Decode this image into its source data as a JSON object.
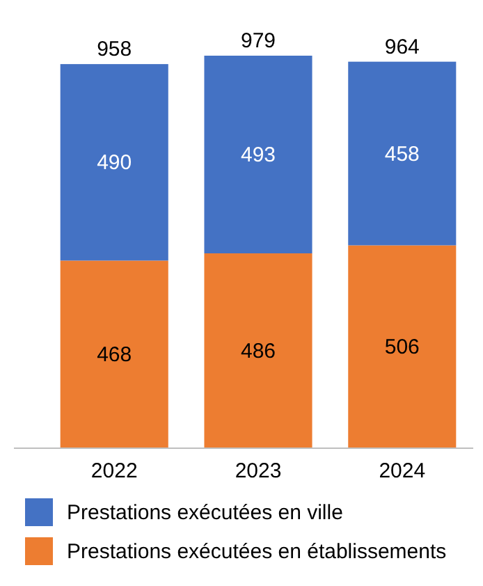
{
  "chart_data": {
    "type": "bar",
    "stacked": true,
    "categories": [
      "2022",
      "2023",
      "2024"
    ],
    "series": [
      {
        "name": "Prestations exécutées en établissements",
        "color": "#ed7d31",
        "values": [
          468,
          486,
          506
        ]
      },
      {
        "name": "Prestations exécutées en ville",
        "color": "#4472c4",
        "values": [
          490,
          493,
          458
        ]
      }
    ],
    "data_labels": true,
    "totals": [
      "958",
      "979",
      "964"
    ],
    "legend": "bottom"
  }
}
